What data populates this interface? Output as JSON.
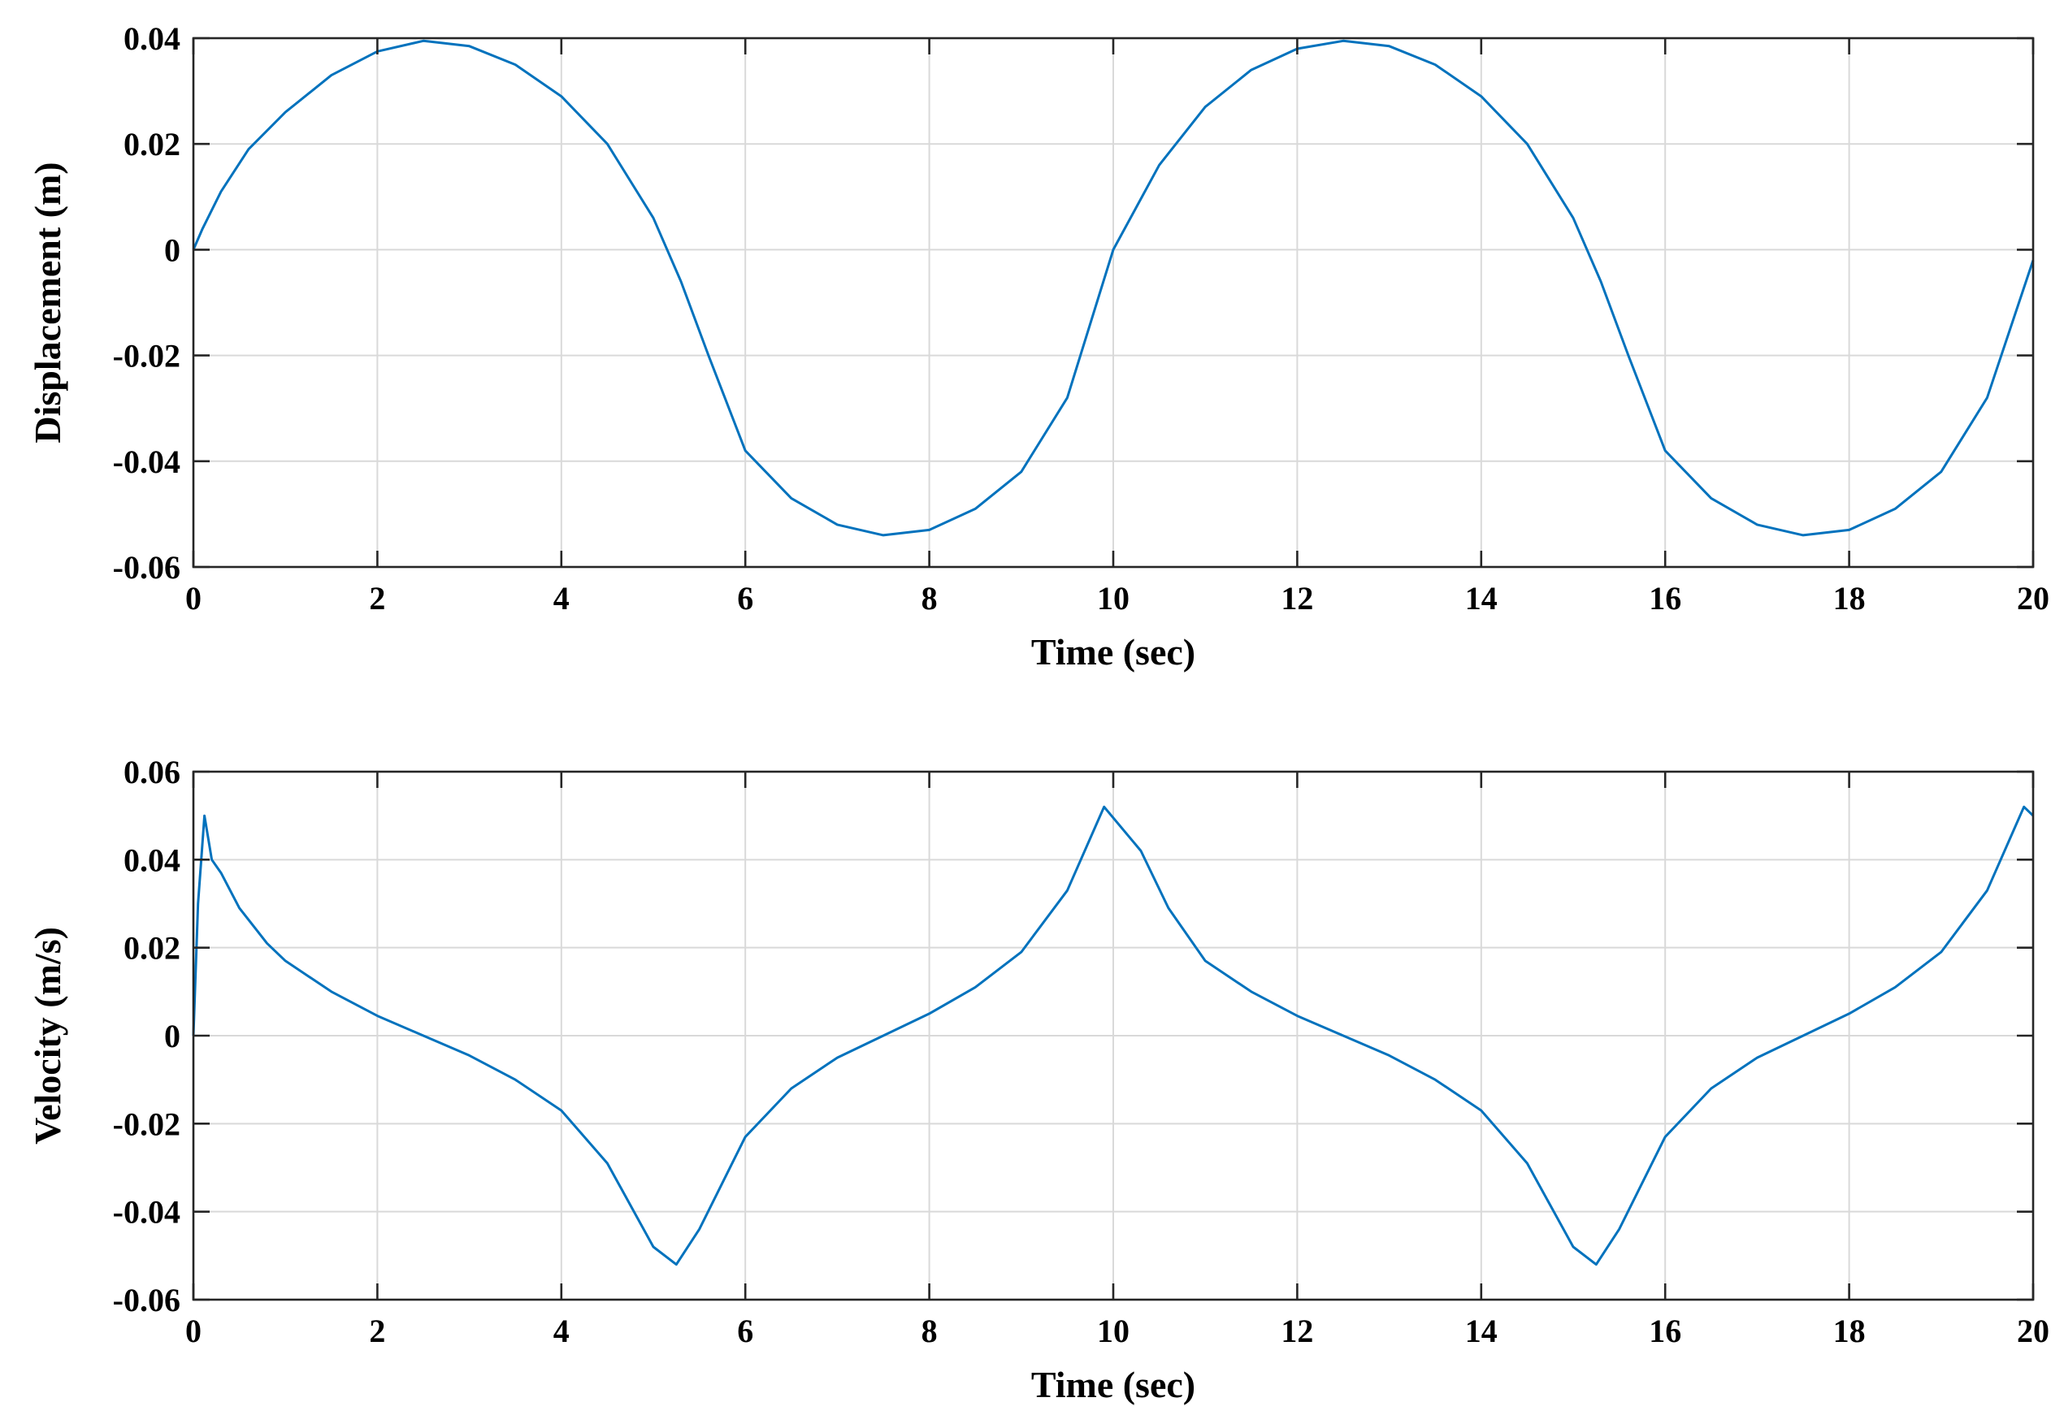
{
  "chart_data": [
    {
      "type": "line",
      "title": "",
      "xlabel": "Time (sec)",
      "ylabel": "Displacement (m)",
      "xlim": [
        0,
        20
      ],
      "ylim": [
        -0.06,
        0.04
      ],
      "xticks": [
        0,
        2,
        4,
        6,
        8,
        10,
        12,
        14,
        16,
        18,
        20
      ],
      "xtick_labels": [
        "0",
        "2",
        "4",
        "6",
        "8",
        "10",
        "12",
        "14",
        "16",
        "18",
        "20"
      ],
      "yticks": [
        0.04,
        0.02,
        0,
        -0.02,
        -0.04,
        -0.06
      ],
      "ytick_labels": [
        "0.04",
        "0.02",
        "0",
        "-0.02",
        "-0.04",
        "-0.06"
      ],
      "grid": true,
      "series_color": "#0072bd",
      "series": [
        {
          "x": [
            0,
            0.1,
            0.3,
            0.6,
            1.0,
            1.5,
            2.0,
            2.5,
            3.0,
            3.5,
            4.0,
            4.5,
            5.0,
            5.3,
            5.6,
            6.0,
            6.5,
            7.0,
            7.5,
            8.0,
            8.5,
            9.0,
            9.5,
            10.0,
            10.5,
            11.0,
            11.5,
            12.0,
            12.5,
            13.0,
            13.5,
            14.0,
            14.5,
            15.0,
            15.3,
            15.6,
            16.0,
            16.5,
            17.0,
            17.5,
            18.0,
            18.5,
            19.0,
            19.5,
            20.0
          ],
          "y": [
            0,
            0.004,
            0.011,
            0.019,
            0.026,
            0.033,
            0.0375,
            0.0395,
            0.0385,
            0.035,
            0.029,
            0.02,
            0.006,
            -0.006,
            -0.02,
            -0.038,
            -0.047,
            -0.052,
            -0.054,
            -0.053,
            -0.049,
            -0.042,
            -0.028,
            0,
            0.016,
            0.027,
            0.034,
            0.038,
            0.0395,
            0.0385,
            0.035,
            0.029,
            0.02,
            0.006,
            -0.006,
            -0.02,
            -0.038,
            -0.047,
            -0.052,
            -0.054,
            -0.053,
            -0.049,
            -0.042,
            -0.028,
            -0.002
          ]
        }
      ]
    },
    {
      "type": "line",
      "title": "",
      "xlabel": "Time (sec)",
      "ylabel": "Velocity (m/s)",
      "xlim": [
        0,
        20
      ],
      "ylim": [
        -0.06,
        0.06
      ],
      "xticks": [
        0,
        2,
        4,
        6,
        8,
        10,
        12,
        14,
        16,
        18,
        20
      ],
      "xtick_labels": [
        "0",
        "2",
        "4",
        "6",
        "8",
        "10",
        "12",
        "14",
        "16",
        "18",
        "20"
      ],
      "yticks": [
        0.06,
        0.04,
        0.02,
        0,
        -0.02,
        -0.04,
        -0.06
      ],
      "ytick_labels": [
        "0.06",
        "0.04",
        "0.02",
        "0",
        "-0.02",
        "-0.04",
        "-0.06"
      ],
      "grid": true,
      "series_color": "#0072bd",
      "series": [
        {
          "x": [
            0,
            0.05,
            0.12,
            0.2,
            0.3,
            0.5,
            0.8,
            1.0,
            1.5,
            2.0,
            2.5,
            3.0,
            3.5,
            4.0,
            4.5,
            5.0,
            5.25,
            5.5,
            6.0,
            6.5,
            7.0,
            7.5,
            8.0,
            8.5,
            9.0,
            9.5,
            9.9,
            10.3,
            10.6,
            11.0,
            11.5,
            12.0,
            12.5,
            13.0,
            13.5,
            14.0,
            14.5,
            15.0,
            15.25,
            15.5,
            16.0,
            16.5,
            17.0,
            17.5,
            18.0,
            18.5,
            19.0,
            19.5,
            19.9,
            20.0
          ],
          "y": [
            0,
            0.03,
            0.05,
            0.04,
            0.037,
            0.029,
            0.021,
            0.017,
            0.01,
            0.0045,
            0,
            -0.0045,
            -0.01,
            -0.017,
            -0.029,
            -0.048,
            -0.052,
            -0.044,
            -0.023,
            -0.012,
            -0.005,
            0,
            0.005,
            0.011,
            0.019,
            0.033,
            0.052,
            0.042,
            0.029,
            0.017,
            0.01,
            0.0045,
            0,
            -0.0045,
            -0.01,
            -0.017,
            -0.029,
            -0.048,
            -0.052,
            -0.044,
            -0.023,
            -0.012,
            -0.005,
            0,
            0.005,
            0.011,
            0.019,
            0.033,
            0.052,
            0.05
          ]
        }
      ]
    }
  ]
}
